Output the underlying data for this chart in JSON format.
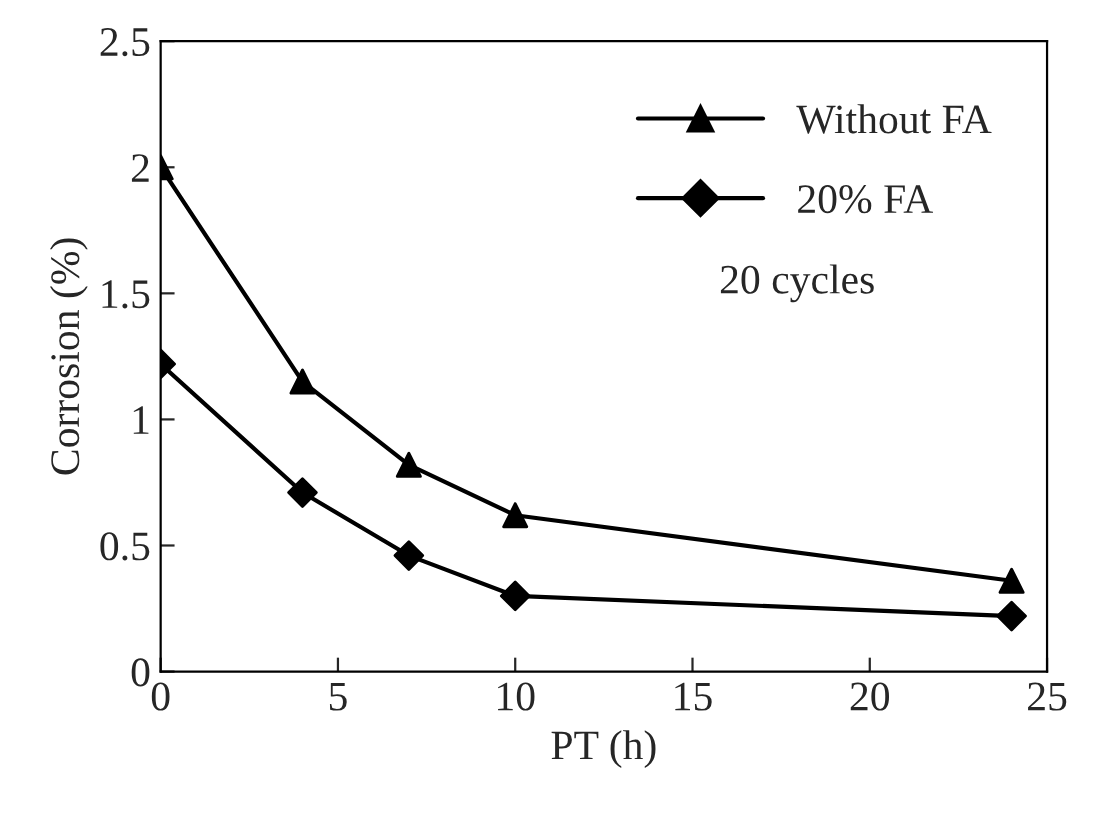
{
  "chart_data": {
    "type": "line",
    "xlabel": "PT (h)",
    "ylabel": "Corrosion (%)",
    "x": [
      0,
      4,
      7,
      10,
      24
    ],
    "series": [
      {
        "name": "Without FA",
        "color": "#000000",
        "marker": "triangle",
        "values": [
          2.0,
          1.15,
          0.82,
          0.62,
          0.36
        ]
      },
      {
        "name": "20% FA",
        "color": "#000000",
        "marker": "diamond",
        "values": [
          1.22,
          0.71,
          0.46,
          0.3,
          0.22
        ]
      }
    ],
    "xlim": [
      0,
      25
    ],
    "xticks": [
      0,
      5,
      10,
      15,
      20,
      25
    ],
    "ylim": [
      0,
      2.5
    ],
    "yticks": [
      0,
      0.5,
      1,
      1.5,
      2,
      2.5
    ],
    "annotations": [
      "20 cycles"
    ],
    "legend": "top right",
    "grid": false,
    "line_style": "solid"
  }
}
